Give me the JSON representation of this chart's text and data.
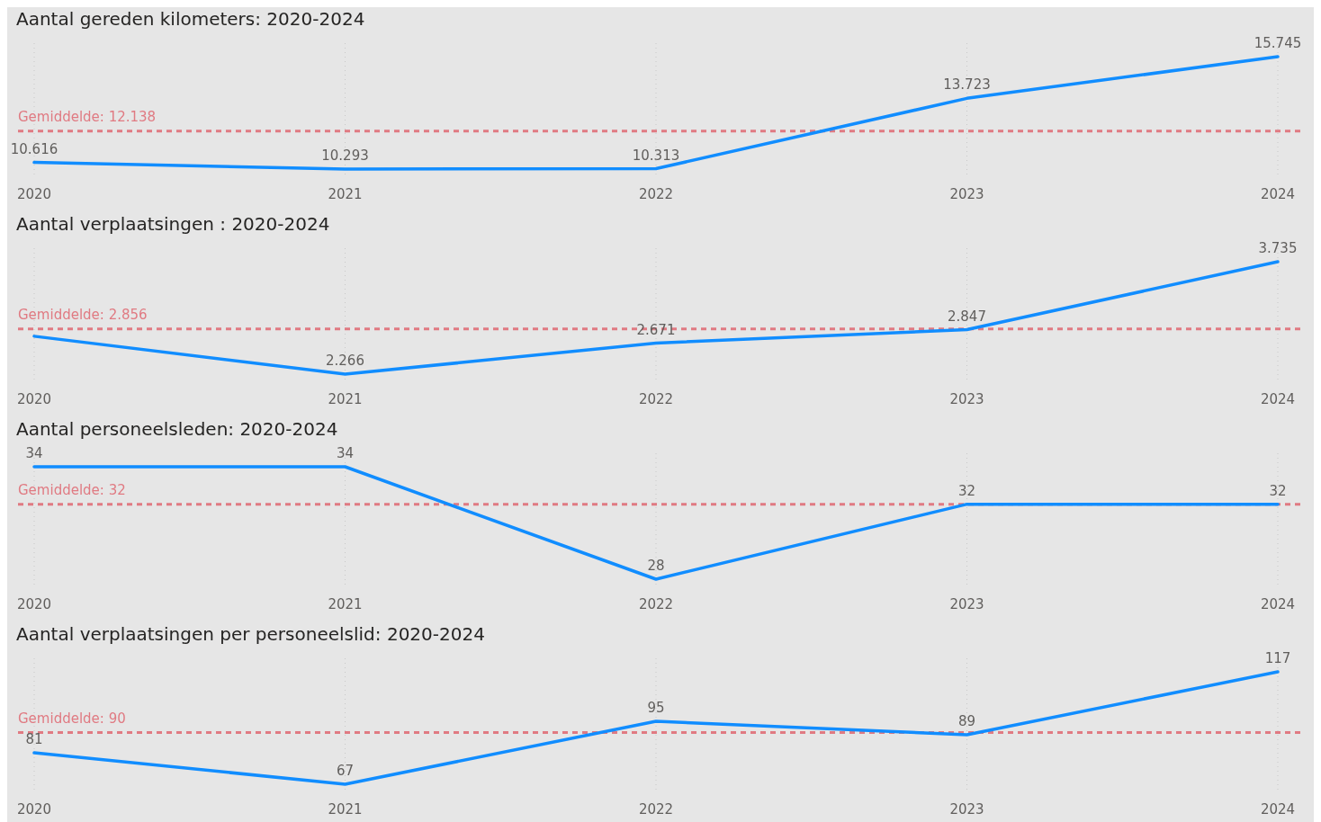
{
  "chart_data": [
    {
      "type": "line",
      "title": "Aantal gereden kilometers: 2020-2024",
      "categories": [
        "2020",
        "2021",
        "2022",
        "2023",
        "2024"
      ],
      "grid": "x",
      "marker": "none",
      "line_style": "solid",
      "series": [
        {
          "color": "#118dff",
          "values": [
            10616,
            10293,
            10313,
            13723,
            15745
          ],
          "value_labels": [
            "10.616",
            "10.293",
            "10.313",
            "13.723",
            "15.745"
          ]
        }
      ],
      "ref_lines": [
        {
          "axis": "y",
          "value": 12138,
          "label": "Gemiddelde: 12.138",
          "color": "#e07a82",
          "line_style": "dashed"
        }
      ]
    },
    {
      "type": "line",
      "title": "Aantal verplaatsingen : 2020-2024",
      "categories": [
        "2020",
        "2021",
        "2022",
        "2023",
        "2024"
      ],
      "grid": "x",
      "marker": "none",
      "line_style": "solid",
      "series": [
        {
          "color": "#118dff",
          "values": [
            2761,
            2266,
            2671,
            2847,
            3735
          ],
          "value_labels": [
            null,
            "2.266",
            "2.671",
            "2.847",
            "3.735"
          ]
        }
      ],
      "ref_lines": [
        {
          "axis": "y",
          "value": 2856,
          "label": "Gemiddelde: 2.856",
          "color": "#e07a82",
          "line_style": "dashed"
        }
      ]
    },
    {
      "type": "line",
      "title": "Aantal personeelsleden: 2020-2024",
      "categories": [
        "2020",
        "2021",
        "2022",
        "2023",
        "2024"
      ],
      "grid": "x",
      "marker": "none",
      "line_style": "solid",
      "series": [
        {
          "color": "#118dff",
          "values": [
            34,
            34,
            28,
            32,
            32
          ],
          "value_labels": [
            "34",
            "34",
            "28",
            "32",
            "32"
          ]
        }
      ],
      "ref_lines": [
        {
          "axis": "y",
          "value": 32,
          "label": "Gemiddelde: 32",
          "color": "#e07a82",
          "line_style": "dashed"
        }
      ]
    },
    {
      "type": "line",
      "title": "Aantal verplaatsingen per personeelslid: 2020-2024",
      "categories": [
        "2020",
        "2021",
        "2022",
        "2023",
        "2024"
      ],
      "grid": "x",
      "marker": "none",
      "line_style": "solid",
      "series": [
        {
          "color": "#118dff",
          "values": [
            81,
            67,
            95,
            89,
            117
          ],
          "value_labels": [
            "81",
            "67",
            "95",
            "89",
            "117"
          ]
        }
      ],
      "ref_lines": [
        {
          "axis": "y",
          "value": 90,
          "label": "Gemiddelde: 90",
          "color": "#e07a82",
          "line_style": "dashed"
        }
      ]
    }
  ]
}
